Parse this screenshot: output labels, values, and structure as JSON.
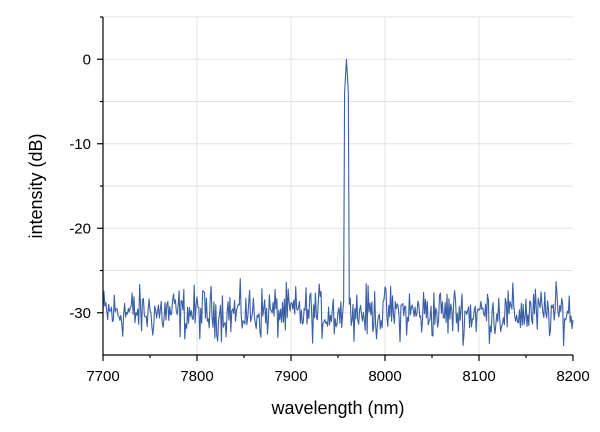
{
  "chart_data": {
    "type": "line",
    "xlabel": "wavelength (nm)",
    "ylabel": "intensity (dB)",
    "xlim": [
      7700,
      8200
    ],
    "ylim": [
      -35,
      5
    ],
    "xticks": [
      7700,
      7800,
      7900,
      8000,
      8100,
      8200
    ],
    "yticks": [
      0,
      -10,
      -20,
      -30
    ],
    "grid": true,
    "colors": {
      "line": "#3a5fa5",
      "grid": "#e3e3e3",
      "axis": "#000000"
    },
    "series": [
      {
        "noise_floor_db": -30,
        "noise_amplitude_db": 2.5,
        "peak": {
          "x": 7959,
          "y": 0,
          "fwhm_nm": 2
        }
      }
    ]
  }
}
